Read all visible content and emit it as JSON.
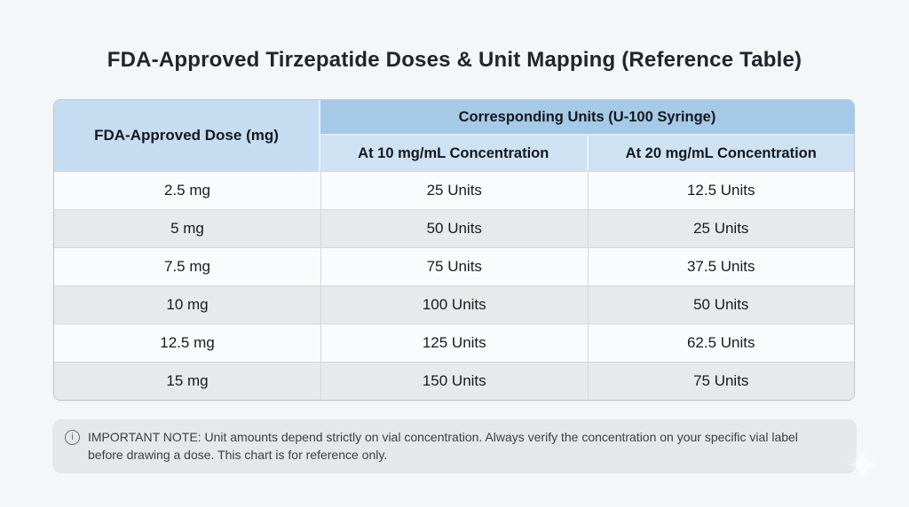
{
  "page": {
    "title": "FDA-Approved Tirzepatide Doses & Unit Mapping (Reference Table)",
    "background_color": "#f4f7f7"
  },
  "chart_data": {
    "type": "table",
    "title": "FDA-Approved Tirzepatide Doses & Unit Mapping (Reference Table)",
    "group_header": "Corresponding Units (U-100 Syringe)",
    "columns": [
      "FDA-Approved Dose (mg)",
      "At 10 mg/mL Concentration",
      "At 20 mg/mL Concentration"
    ],
    "rows": [
      [
        "2.5 mg",
        "25 Units",
        "12.5 Units"
      ],
      [
        "5 mg",
        "50 Units",
        "25 Units"
      ],
      [
        "7.5 mg",
        "75 Units",
        "37.5 Units"
      ],
      [
        "10 mg",
        "100 Units",
        "50 Units"
      ],
      [
        "12.5 mg",
        "125 Units",
        "62.5 Units"
      ],
      [
        "15 mg",
        "150 Units",
        "75 Units"
      ]
    ]
  },
  "note": {
    "line1": "IMPORTANT NOTE: Unit amounts depend strictly on vial concentration. Always verify the concentration on your specific vial label",
    "line2": "before drawing a dose. This chart is for reference only."
  },
  "icons": {
    "info_glyph": "i",
    "sparkle_glyph": "✦"
  },
  "colors": {
    "header_group_bg": "#a6c9e7",
    "header_dose_bg": "#c6dcf0",
    "subheader_bg": "#cfe2f4",
    "row_white_bg": "#fafbfc",
    "row_gray_bg": "#e7e9ea",
    "note_bg": "#e5e7e9",
    "page_bg": "#f4f7f7",
    "title_text": "#20252d"
  }
}
